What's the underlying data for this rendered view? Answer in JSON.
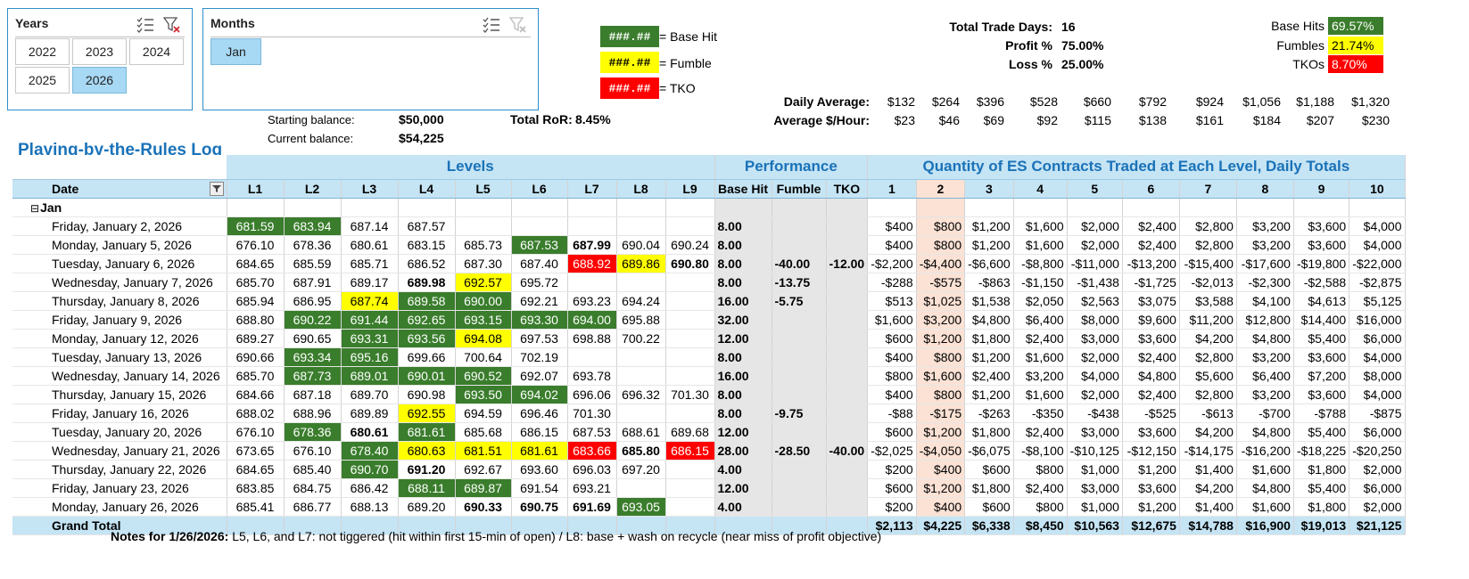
{
  "slicers": {
    "years": {
      "title": "Years",
      "items": [
        "2022",
        "2023",
        "2024",
        "2025",
        "2026"
      ],
      "selected": "2026"
    },
    "months": {
      "title": "Months",
      "items": [
        "Jan"
      ],
      "selected": "Jan"
    }
  },
  "legend": [
    {
      "sample": "###.##",
      "label": "= Base Hit",
      "color": "#3a7d2c"
    },
    {
      "sample": "###.##",
      "label": "= Fumble",
      "color": "#ffff00"
    },
    {
      "sample": "###.##",
      "label": "= TKO",
      "color": "#ff0000"
    }
  ],
  "balances": {
    "starting_label": "Starting balance:",
    "starting": "$50,000",
    "current_label": "Current balance:",
    "current": "$54,225",
    "ror_label": "Total RoR:",
    "ror": "8.45%"
  },
  "stats": {
    "trade_days_label": "Total Trade Days:",
    "trade_days": "16",
    "profit_label": "Profit %",
    "profit": "75.00%",
    "loss_label": "Loss %",
    "loss": "25.00%"
  },
  "outcomes": [
    {
      "label": "Base Hits",
      "value": "69.57%",
      "color": "#3a7d2c"
    },
    {
      "label": "Fumbles",
      "value": "21.74%",
      "color": "#ffff00"
    },
    {
      "label": "TKOs",
      "value": "8.70%",
      "color": "#ff0000"
    }
  ],
  "averages": {
    "daily_label": "Daily Average:",
    "daily": [
      "$132",
      "$264",
      "$396",
      "$528",
      "$660",
      "$792",
      "$924",
      "$1,056",
      "$1,188",
      "$1,320"
    ],
    "hourly_label": "Average $/Hour:",
    "hourly": [
      "$23",
      "$46",
      "$69",
      "$92",
      "$115",
      "$138",
      "$161",
      "$184",
      "$207",
      "$230"
    ]
  },
  "table": {
    "log_title": "Playing-by-the-Rules Log",
    "group_levels": "Levels",
    "group_performance": "Performance",
    "group_quantity": "Quantity of ES Contracts Traded at Each Level, Daily Totals",
    "date_header": "Date",
    "level_headers": [
      "L1",
      "L2",
      "L3",
      "L4",
      "L5",
      "L6",
      "L7",
      "L8",
      "L9"
    ],
    "perf_headers": [
      "Base Hit",
      "Fumble",
      "TKO"
    ],
    "qty_headers": [
      "1",
      "2",
      "3",
      "4",
      "5",
      "6",
      "7",
      "8",
      "9",
      "10"
    ],
    "month_label": "Jan",
    "rows": [
      {
        "date": "Friday, January 2, 2026",
        "levels": [
          "681.59",
          "683.94",
          "687.14",
          "687.57",
          "",
          "",
          "",
          "",
          ""
        ],
        "styles": [
          "bh",
          "bh",
          "",
          "",
          "",
          "",
          "",
          "",
          ""
        ],
        "perf": [
          "8.00",
          "",
          ""
        ],
        "qty": [
          "$400",
          "$800",
          "$1,200",
          "$1,600",
          "$2,000",
          "$2,400",
          "$2,800",
          "$3,200",
          "$3,600",
          "$4,000"
        ]
      },
      {
        "date": "Monday, January 5, 2026",
        "levels": [
          "676.10",
          "678.36",
          "680.61",
          "683.15",
          "685.73",
          "687.53",
          "687.99",
          "690.04",
          "690.24"
        ],
        "styles": [
          "",
          "",
          "",
          "",
          "",
          "bh",
          "bl",
          "",
          ""
        ],
        "perf": [
          "8.00",
          "",
          ""
        ],
        "qty": [
          "$400",
          "$800",
          "$1,200",
          "$1,600",
          "$2,000",
          "$2,400",
          "$2,800",
          "$3,200",
          "$3,600",
          "$4,000"
        ]
      },
      {
        "date": "Tuesday, January 6, 2026",
        "levels": [
          "684.65",
          "685.59",
          "685.71",
          "686.52",
          "687.30",
          "687.40",
          "688.92",
          "689.86",
          "690.80"
        ],
        "styles": [
          "",
          "",
          "",
          "",
          "",
          "",
          "tk",
          "fu",
          "bl"
        ],
        "perf": [
          "8.00",
          "-40.00",
          "-12.00"
        ],
        "qty": [
          "-$2,200",
          "-$4,400",
          "-$6,600",
          "-$8,800",
          "-$11,000",
          "-$13,200",
          "-$15,400",
          "-$17,600",
          "-$19,800",
          "-$22,000"
        ]
      },
      {
        "date": "Wednesday, January 7, 2026",
        "levels": [
          "685.70",
          "687.91",
          "689.17",
          "689.98",
          "692.57",
          "695.72",
          "",
          "",
          ""
        ],
        "styles": [
          "",
          "",
          "",
          "bl",
          "fu",
          "",
          "",
          "",
          ""
        ],
        "perf": [
          "8.00",
          "-13.75",
          ""
        ],
        "qty": [
          "-$288",
          "-$575",
          "-$863",
          "-$1,150",
          "-$1,438",
          "-$1,725",
          "-$2,013",
          "-$2,300",
          "-$2,588",
          "-$2,875"
        ]
      },
      {
        "date": "Thursday, January 8, 2026",
        "levels": [
          "685.94",
          "686.95",
          "687.74",
          "689.58",
          "690.00",
          "692.21",
          "693.23",
          "694.24",
          ""
        ],
        "styles": [
          "",
          "",
          "fu",
          "bh",
          "bh",
          "",
          "",
          "",
          ""
        ],
        "perf": [
          "16.00",
          "-5.75",
          ""
        ],
        "qty": [
          "$513",
          "$1,025",
          "$1,538",
          "$2,050",
          "$2,563",
          "$3,075",
          "$3,588",
          "$4,100",
          "$4,613",
          "$5,125"
        ]
      },
      {
        "date": "Friday, January 9, 2026",
        "levels": [
          "688.80",
          "690.22",
          "691.44",
          "692.65",
          "693.15",
          "693.30",
          "694.00",
          "695.88",
          ""
        ],
        "styles": [
          "",
          "bh",
          "bh",
          "bh",
          "bh",
          "bh",
          "bh",
          "",
          ""
        ],
        "perf": [
          "32.00",
          "",
          ""
        ],
        "qty": [
          "$1,600",
          "$3,200",
          "$4,800",
          "$6,400",
          "$8,000",
          "$9,600",
          "$11,200",
          "$12,800",
          "$14,400",
          "$16,000"
        ]
      },
      {
        "date": "Monday, January 12, 2026",
        "levels": [
          "689.27",
          "690.65",
          "693.31",
          "693.56",
          "694.08",
          "697.53",
          "698.88",
          "700.22",
          ""
        ],
        "styles": [
          "",
          "",
          "bh",
          "bh",
          "fu",
          "",
          "",
          "",
          ""
        ],
        "perf": [
          "12.00",
          "",
          ""
        ],
        "qty": [
          "$600",
          "$1,200",
          "$1,800",
          "$2,400",
          "$3,000",
          "$3,600",
          "$4,200",
          "$4,800",
          "$5,400",
          "$6,000"
        ]
      },
      {
        "date": "Tuesday, January 13, 2026",
        "levels": [
          "690.66",
          "693.34",
          "695.16",
          "699.66",
          "700.64",
          "702.19",
          "",
          "",
          ""
        ],
        "styles": [
          "",
          "bh",
          "bh",
          "",
          "",
          "",
          "",
          "",
          ""
        ],
        "perf": [
          "8.00",
          "",
          ""
        ],
        "qty": [
          "$400",
          "$800",
          "$1,200",
          "$1,600",
          "$2,000",
          "$2,400",
          "$2,800",
          "$3,200",
          "$3,600",
          "$4,000"
        ]
      },
      {
        "date": "Wednesday, January 14, 2026",
        "levels": [
          "685.70",
          "687.73",
          "689.01",
          "690.01",
          "690.52",
          "692.07",
          "693.78",
          "",
          ""
        ],
        "styles": [
          "",
          "bh",
          "bh",
          "bh",
          "bh",
          "",
          "",
          "",
          ""
        ],
        "perf": [
          "16.00",
          "",
          ""
        ],
        "qty": [
          "$800",
          "$1,600",
          "$2,400",
          "$3,200",
          "$4,000",
          "$4,800",
          "$5,600",
          "$6,400",
          "$7,200",
          "$8,000"
        ]
      },
      {
        "date": "Thursday, January 15, 2026",
        "levels": [
          "684.66",
          "687.18",
          "689.70",
          "690.98",
          "693.50",
          "694.02",
          "696.06",
          "696.32",
          "701.30"
        ],
        "styles": [
          "",
          "",
          "",
          "",
          "bh",
          "bh",
          "",
          "",
          ""
        ],
        "perf": [
          "8.00",
          "",
          ""
        ],
        "qty": [
          "$400",
          "$800",
          "$1,200",
          "$1,600",
          "$2,000",
          "$2,400",
          "$2,800",
          "$3,200",
          "$3,600",
          "$4,000"
        ]
      },
      {
        "date": "Friday, January 16, 2026",
        "levels": [
          "688.02",
          "688.96",
          "689.89",
          "692.55",
          "694.59",
          "696.46",
          "701.30",
          "",
          ""
        ],
        "styles": [
          "",
          "",
          "",
          "fu",
          "",
          "",
          "",
          "",
          ""
        ],
        "perf": [
          "8.00",
          "-9.75",
          ""
        ],
        "qty": [
          "-$88",
          "-$175",
          "-$263",
          "-$350",
          "-$438",
          "-$525",
          "-$613",
          "-$700",
          "-$788",
          "-$875"
        ]
      },
      {
        "date": "Tuesday, January 20, 2026",
        "levels": [
          "676.10",
          "678.36",
          "680.61",
          "681.61",
          "685.68",
          "686.15",
          "687.53",
          "688.61",
          "689.68"
        ],
        "styles": [
          "",
          "bh",
          "bl",
          "bh",
          "",
          "",
          "",
          "",
          ""
        ],
        "perf": [
          "12.00",
          "",
          ""
        ],
        "qty": [
          "$600",
          "$1,200",
          "$1,800",
          "$2,400",
          "$3,000",
          "$3,600",
          "$4,200",
          "$4,800",
          "$5,400",
          "$6,000"
        ]
      },
      {
        "date": "Wednesday, January 21, 2026",
        "levels": [
          "673.65",
          "676.10",
          "678.40",
          "680.63",
          "681.51",
          "681.61",
          "683.66",
          "685.80",
          "686.15"
        ],
        "styles": [
          "",
          "",
          "bh",
          "fu",
          "fu",
          "fu",
          "tk",
          "bl",
          "tk"
        ],
        "perf": [
          "28.00",
          "-28.50",
          "-40.00"
        ],
        "qty": [
          "-$2,025",
          "-$4,050",
          "-$6,075",
          "-$8,100",
          "-$10,125",
          "-$12,150",
          "-$14,175",
          "-$16,200",
          "-$18,225",
          "-$20,250"
        ]
      },
      {
        "date": "Thursday, January 22, 2026",
        "levels": [
          "684.65",
          "685.40",
          "690.70",
          "691.20",
          "692.67",
          "693.60",
          "696.03",
          "697.20",
          ""
        ],
        "styles": [
          "",
          "",
          "bh",
          "bl",
          "",
          "",
          "",
          "",
          ""
        ],
        "perf": [
          "4.00",
          "",
          ""
        ],
        "qty": [
          "$200",
          "$400",
          "$600",
          "$800",
          "$1,000",
          "$1,200",
          "$1,400",
          "$1,600",
          "$1,800",
          "$2,000"
        ]
      },
      {
        "date": "Friday, January 23, 2026",
        "levels": [
          "683.85",
          "684.75",
          "686.42",
          "688.11",
          "689.87",
          "691.54",
          "693.21",
          "",
          ""
        ],
        "styles": [
          "",
          "",
          "",
          "bh",
          "bh",
          "",
          "",
          "",
          ""
        ],
        "perf": [
          "12.00",
          "",
          ""
        ],
        "qty": [
          "$600",
          "$1,200",
          "$1,800",
          "$2,400",
          "$3,000",
          "$3,600",
          "$4,200",
          "$4,800",
          "$5,400",
          "$6,000"
        ]
      },
      {
        "date": "Monday, January 26, 2026",
        "levels": [
          "685.41",
          "686.77",
          "688.13",
          "689.20",
          "690.33",
          "690.75",
          "691.69",
          "693.05",
          ""
        ],
        "styles": [
          "",
          "",
          "",
          "",
          "bl",
          "bl",
          "bl",
          "bh",
          ""
        ],
        "perf": [
          "4.00",
          "",
          ""
        ],
        "qty": [
          "$200",
          "$400",
          "$600",
          "$800",
          "$1,000",
          "$1,200",
          "$1,400",
          "$1,600",
          "$1,800",
          "$2,000"
        ]
      }
    ],
    "grand_total_label": "Grand Total",
    "grand_total": [
      "$2,113",
      "$4,225",
      "$6,338",
      "$8,450",
      "$10,563",
      "$12,675",
      "$14,788",
      "$16,900",
      "$19,013",
      "$21,125"
    ]
  },
  "notes": {
    "label": "Notes for 1/26/2026:",
    "text": "L5, L6, and L7: not tiggered (hit within first 15-min of open) / L8: base + wash on recycle (near miss of profit objective)"
  }
}
